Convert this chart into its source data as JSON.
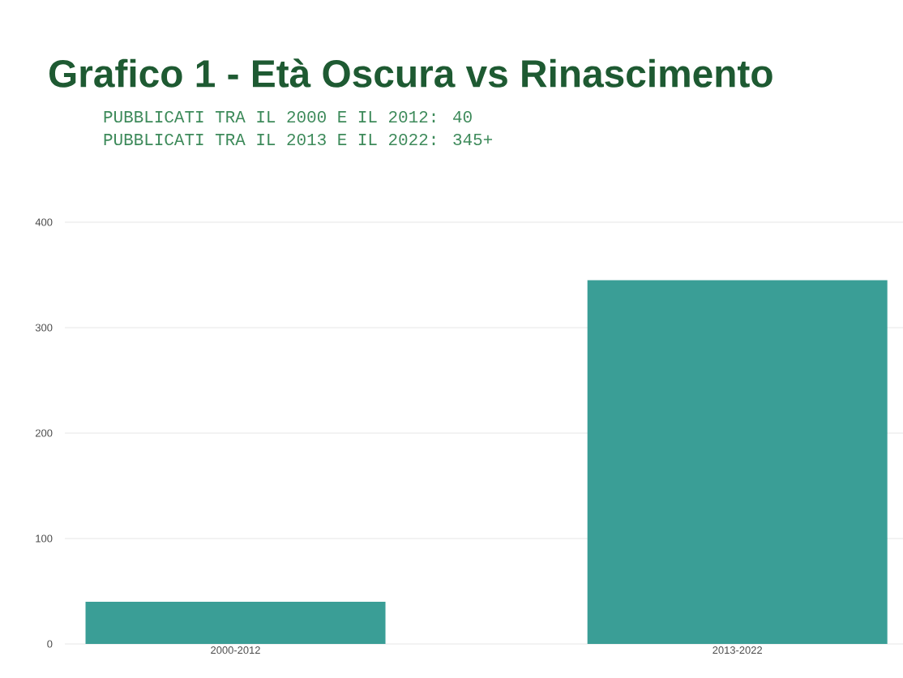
{
  "chart_data": {
    "type": "bar",
    "title": "Grafico 1 - Età Oscura vs Rinascimento",
    "subtitle": "PUBBLICATI TRA IL 2000 E IL 2012: 40",
    "annotations": [
      "PUBBLICATI TRA IL 2013 E IL 2022: 345+"
    ],
    "categories": [
      "2000-2012",
      "2013-2022"
    ],
    "values": [
      40,
      345
    ],
    "color": "#3a9e96",
    "ylim": [
      0,
      400
    ],
    "yticks": [
      0,
      100,
      200,
      300,
      400
    ],
    "grid": "y"
  }
}
